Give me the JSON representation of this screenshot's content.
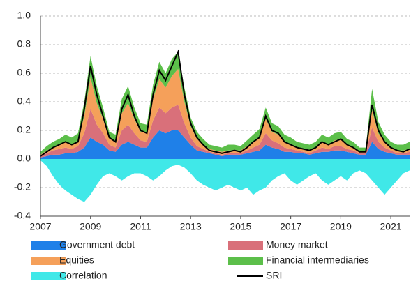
{
  "chart_data": {
    "type": "area",
    "stacked": true,
    "grid": true,
    "x": [
      2007.0,
      2007.25,
      2007.5,
      2007.75,
      2008.0,
      2008.25,
      2008.5,
      2008.75,
      2009.0,
      2009.25,
      2009.5,
      2009.75,
      2010.0,
      2010.25,
      2010.5,
      2010.75,
      2011.0,
      2011.25,
      2011.5,
      2011.75,
      2012.0,
      2012.25,
      2012.5,
      2012.75,
      2013.0,
      2013.25,
      2013.5,
      2013.75,
      2014.0,
      2014.25,
      2014.5,
      2014.75,
      2015.0,
      2015.25,
      2015.5,
      2015.75,
      2016.0,
      2016.25,
      2016.5,
      2016.75,
      2017.0,
      2017.25,
      2017.5,
      2017.75,
      2018.0,
      2018.25,
      2018.5,
      2018.75,
      2019.0,
      2019.25,
      2019.5,
      2019.75,
      2020.0,
      2020.25,
      2020.5,
      2020.75,
      2021.0,
      2021.25,
      2021.5,
      2021.75
    ],
    "xlim": [
      2007,
      2021.75
    ],
    "xticks": [
      2007,
      2009,
      2011,
      2013,
      2015,
      2017,
      2019,
      2021
    ],
    "ylim": [
      -0.4,
      1.0
    ],
    "yticks": [
      {
        "value": -0.4,
        "label": "-0.4"
      },
      {
        "value": -0.2,
        "label": "-0.2"
      },
      {
        "value": 0,
        "label": "0.0"
      },
      0.2,
      0.4,
      0.6,
      0.8,
      {
        "value": 1,
        "label": "1.0"
      }
    ],
    "series": [
      {
        "name": "Government debt",
        "color": "#1f80e8",
        "values": [
          0.01,
          0.02,
          0.03,
          0.03,
          0.04,
          0.04,
          0.05,
          0.08,
          0.15,
          0.12,
          0.1,
          0.06,
          0.05,
          0.1,
          0.12,
          0.1,
          0.08,
          0.08,
          0.15,
          0.2,
          0.18,
          0.2,
          0.2,
          0.15,
          0.1,
          0.06,
          0.05,
          0.04,
          0.03,
          0.02,
          0.03,
          0.03,
          0.03,
          0.04,
          0.05,
          0.06,
          0.1,
          0.08,
          0.07,
          0.05,
          0.05,
          0.04,
          0.04,
          0.03,
          0.04,
          0.05,
          0.05,
          0.06,
          0.06,
          0.05,
          0.04,
          0.03,
          0.03,
          0.12,
          0.07,
          0.05,
          0.04,
          0.03,
          0.03,
          0.03
        ]
      },
      {
        "name": "Money market",
        "color": "#d9707a",
        "values": [
          0.01,
          0.02,
          0.03,
          0.04,
          0.04,
          0.03,
          0.04,
          0.1,
          0.2,
          0.12,
          0.08,
          0.04,
          0.03,
          0.1,
          0.12,
          0.08,
          0.05,
          0.04,
          0.12,
          0.16,
          0.14,
          0.16,
          0.18,
          0.1,
          0.05,
          0.03,
          0.02,
          0.01,
          0.01,
          0.01,
          0.01,
          0.01,
          0.01,
          0.02,
          0.03,
          0.04,
          0.08,
          0.05,
          0.04,
          0.03,
          0.02,
          0.02,
          0.01,
          0.01,
          0.02,
          0.03,
          0.02,
          0.03,
          0.03,
          0.02,
          0.02,
          0.01,
          0.01,
          0.1,
          0.05,
          0.03,
          0.02,
          0.01,
          0.01,
          0.02
        ]
      },
      {
        "name": "Equities",
        "color": "#f5a05a",
        "values": [
          0.01,
          0.02,
          0.02,
          0.03,
          0.04,
          0.03,
          0.04,
          0.12,
          0.22,
          0.15,
          0.1,
          0.04,
          0.04,
          0.12,
          0.15,
          0.1,
          0.06,
          0.06,
          0.15,
          0.2,
          0.18,
          0.22,
          0.25,
          0.15,
          0.08,
          0.05,
          0.03,
          0.02,
          0.02,
          0.02,
          0.02,
          0.02,
          0.02,
          0.03,
          0.04,
          0.05,
          0.1,
          0.06,
          0.06,
          0.04,
          0.03,
          0.02,
          0.02,
          0.02,
          0.02,
          0.04,
          0.03,
          0.04,
          0.05,
          0.03,
          0.02,
          0.01,
          0.01,
          0.12,
          0.06,
          0.04,
          0.02,
          0.02,
          0.02,
          0.02
        ]
      },
      {
        "name": "Financial intermediaries",
        "color": "#5cbf4a",
        "values": [
          0.02,
          0.03,
          0.04,
          0.04,
          0.05,
          0.05,
          0.05,
          0.1,
          0.15,
          0.12,
          0.08,
          0.05,
          0.05,
          0.1,
          0.12,
          0.08,
          0.06,
          0.06,
          0.1,
          0.12,
          0.1,
          0.12,
          0.12,
          0.1,
          0.06,
          0.05,
          0.04,
          0.03,
          0.03,
          0.03,
          0.04,
          0.04,
          0.03,
          0.04,
          0.05,
          0.06,
          0.08,
          0.06,
          0.06,
          0.05,
          0.05,
          0.04,
          0.04,
          0.04,
          0.04,
          0.05,
          0.05,
          0.05,
          0.05,
          0.04,
          0.04,
          0.03,
          0.03,
          0.15,
          0.08,
          0.05,
          0.04,
          0.04,
          0.04,
          0.05
        ]
      },
      {
        "name": "Correlation",
        "color": "#40e8e8",
        "values": [
          -0.01,
          -0.05,
          -0.12,
          -0.18,
          -0.22,
          -0.25,
          -0.28,
          -0.3,
          -0.25,
          -0.18,
          -0.12,
          -0.1,
          -0.12,
          -0.15,
          -0.12,
          -0.1,
          -0.1,
          -0.12,
          -0.15,
          -0.12,
          -0.08,
          -0.05,
          -0.04,
          -0.06,
          -0.1,
          -0.15,
          -0.18,
          -0.2,
          -0.22,
          -0.2,
          -0.18,
          -0.2,
          -0.22,
          -0.2,
          -0.25,
          -0.22,
          -0.2,
          -0.15,
          -0.12,
          -0.1,
          -0.15,
          -0.18,
          -0.15,
          -0.12,
          -0.1,
          -0.15,
          -0.18,
          -0.15,
          -0.12,
          -0.15,
          -0.1,
          -0.08,
          -0.1,
          -0.15,
          -0.2,
          -0.25,
          -0.2,
          -0.15,
          -0.1,
          -0.08
        ]
      },
      {
        "name": "SRI",
        "color": "#000000",
        "type": "line",
        "values": [
          0.02,
          0.05,
          0.08,
          0.1,
          0.12,
          0.1,
          0.12,
          0.35,
          0.65,
          0.45,
          0.3,
          0.15,
          0.12,
          0.35,
          0.45,
          0.3,
          0.2,
          0.18,
          0.45,
          0.62,
          0.55,
          0.65,
          0.75,
          0.45,
          0.25,
          0.15,
          0.1,
          0.06,
          0.05,
          0.04,
          0.05,
          0.06,
          0.05,
          0.08,
          0.12,
          0.15,
          0.3,
          0.2,
          0.18,
          0.12,
          0.1,
          0.08,
          0.07,
          0.06,
          0.08,
          0.12,
          0.1,
          0.12,
          0.14,
          0.1,
          0.08,
          0.05,
          0.05,
          0.38,
          0.2,
          0.12,
          0.08,
          0.06,
          0.05,
          0.07
        ]
      }
    ]
  }
}
